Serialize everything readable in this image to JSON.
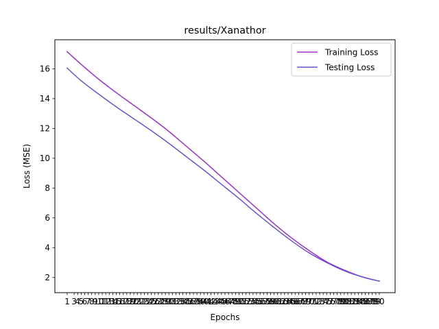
{
  "chart_data": {
    "type": "line",
    "title": "results/Xanathor",
    "xlabel": "Epochs",
    "ylabel": "Loss (MSE)",
    "x": [
      1,
      3,
      4,
      5,
      6,
      7,
      8,
      9,
      10,
      11,
      12,
      13,
      14,
      15,
      16,
      17,
      18,
      19,
      20,
      21,
      22,
      23,
      24,
      25,
      26,
      27,
      28,
      29,
      30,
      31,
      32,
      33,
      34,
      35,
      36,
      37,
      38,
      39,
      40,
      41,
      42,
      43,
      44,
      45,
      46,
      47,
      48,
      49,
      50,
      51,
      52,
      53,
      54,
      55,
      56,
      57,
      58,
      59,
      60,
      61,
      62,
      63,
      64,
      65,
      66,
      67,
      68,
      69,
      70,
      71,
      72,
      73,
      74,
      75,
      76,
      77,
      78,
      79,
      80,
      81,
      82,
      83,
      84,
      85,
      86,
      87,
      88,
      89,
      90
    ],
    "xlim": [
      -2.5,
      94.5
    ],
    "ylim": [
      0.98,
      17.95
    ],
    "yticks": [
      2,
      4,
      6,
      8,
      10,
      12,
      14,
      16
    ],
    "grid": false,
    "legend_position": "top-right",
    "series": [
      {
        "name": "Training Loss",
        "color": "#9b30c6",
        "points": [
          [
            1,
            17.15
          ],
          [
            5,
            16.3
          ],
          [
            10,
            15.3
          ],
          [
            15,
            14.4
          ],
          [
            20,
            13.55
          ],
          [
            25,
            12.7
          ],
          [
            30,
            11.8
          ],
          [
            35,
            10.8
          ],
          [
            40,
            9.8
          ],
          [
            45,
            8.75
          ],
          [
            50,
            7.7
          ],
          [
            55,
            6.65
          ],
          [
            60,
            5.6
          ],
          [
            65,
            4.65
          ],
          [
            70,
            3.8
          ],
          [
            75,
            3.05
          ],
          [
            80,
            2.5
          ],
          [
            85,
            2.05
          ],
          [
            90,
            1.75
          ]
        ]
      },
      {
        "name": "Testing Loss",
        "color": "#6a51cc",
        "points": [
          [
            1,
            16.05
          ],
          [
            5,
            15.2
          ],
          [
            10,
            14.3
          ],
          [
            15,
            13.45
          ],
          [
            20,
            12.65
          ],
          [
            25,
            11.85
          ],
          [
            30,
            11.0
          ],
          [
            35,
            10.1
          ],
          [
            40,
            9.2
          ],
          [
            45,
            8.25
          ],
          [
            50,
            7.3
          ],
          [
            55,
            6.3
          ],
          [
            60,
            5.35
          ],
          [
            65,
            4.45
          ],
          [
            70,
            3.65
          ],
          [
            75,
            3.0
          ],
          [
            80,
            2.45
          ],
          [
            85,
            2.05
          ],
          [
            90,
            1.75
          ]
        ]
      }
    ]
  }
}
